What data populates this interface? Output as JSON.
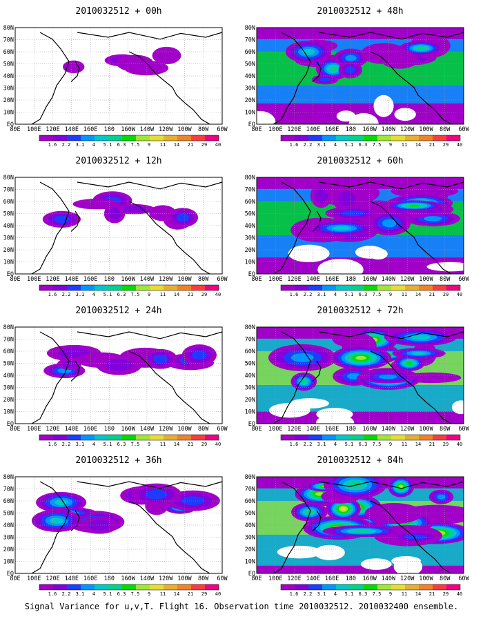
{
  "caption": "Signal Variance for u,v,T. Flight 16. Observation time 2010032512. 2010032400 ensemble.",
  "x_tick_labels": [
    "80E",
    "100E",
    "120E",
    "140E",
    "160E",
    "180",
    "160W",
    "140W",
    "120W",
    "100W",
    "80W",
    "60W"
  ],
  "y_tick_labels": [
    "EQ",
    "10N",
    "20N",
    "30N",
    "40N",
    "50N",
    "60N",
    "70N",
    "80N"
  ],
  "colorbar": {
    "levels": [
      "1.6",
      "2.2",
      "3.1",
      "4",
      "5.1",
      "6.3",
      "7.5",
      "9",
      "11",
      "14",
      "21",
      "29",
      "40"
    ],
    "colors": [
      "#a000c8",
      "#8200dc",
      "#1e3cff",
      "#0096ff",
      "#00c8c8",
      "#00d28c",
      "#00dc00",
      "#a0e632",
      "#e6dc32",
      "#e6af2d",
      "#f08228",
      "#fa3c3c",
      "#f00082"
    ]
  },
  "panels": [
    {
      "id": "00h",
      "title": "2010032512 + 00h",
      "intensity": 0.0
    },
    {
      "id": "48h",
      "title": "2010032512 + 48h",
      "intensity": 0.55
    },
    {
      "id": "12h",
      "title": "2010032512 + 12h",
      "intensity": 0.15
    },
    {
      "id": "60h",
      "title": "2010032512 + 60h",
      "intensity": 0.7
    },
    {
      "id": "24h",
      "title": "2010032512 + 24h",
      "intensity": 0.3
    },
    {
      "id": "72h",
      "title": "2010032512 + 72h",
      "intensity": 0.85
    },
    {
      "id": "36h",
      "title": "2010032512 + 36h",
      "intensity": 0.45
    },
    {
      "id": "84h",
      "title": "2010032512 + 84h",
      "intensity": 1.0
    }
  ]
}
